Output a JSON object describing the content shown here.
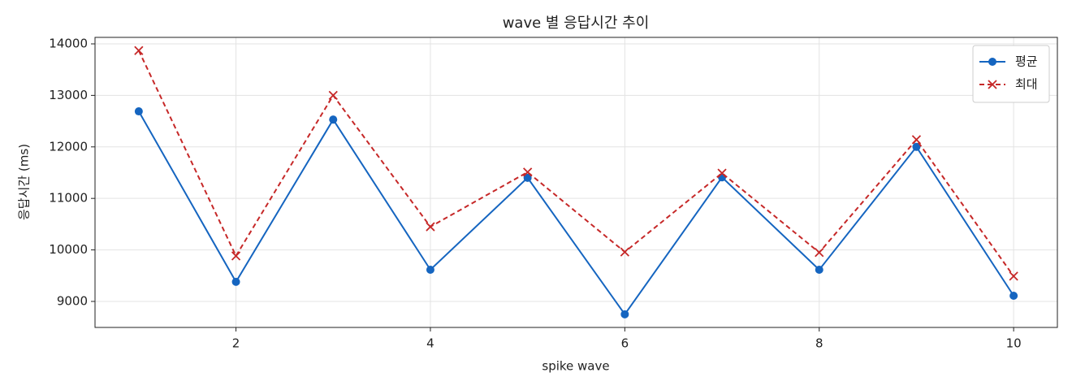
{
  "chart_data": {
    "type": "line",
    "title": "wave 별 응답시간 추이",
    "x_label": "spike wave",
    "y_label": "응답시간 (ms)",
    "x": [
      1,
      2,
      3,
      4,
      5,
      6,
      7,
      8,
      9,
      10
    ],
    "series": [
      {
        "name": "평균",
        "color": "#1565c0",
        "marker": "circle",
        "dash": false,
        "values": [
          12690,
          9380,
          12530,
          9615,
          11400,
          8750,
          11410,
          9615,
          12000,
          9110
        ]
      },
      {
        "name": "최대",
        "color": "#c62828",
        "marker": "x",
        "dash": true,
        "values": [
          13870,
          9883,
          13000,
          10450,
          11510,
          9960,
          11490,
          9950,
          12140,
          9490
        ]
      }
    ],
    "xlim": [
      0.55,
      10.45
    ],
    "ylim": [
      8495,
      14126
    ],
    "xticks": [
      2,
      4,
      6,
      8,
      10
    ],
    "yticks": [
      9000,
      10000,
      11000,
      12000,
      13000,
      14000
    ],
    "grid": true,
    "legend": "upper right"
  }
}
